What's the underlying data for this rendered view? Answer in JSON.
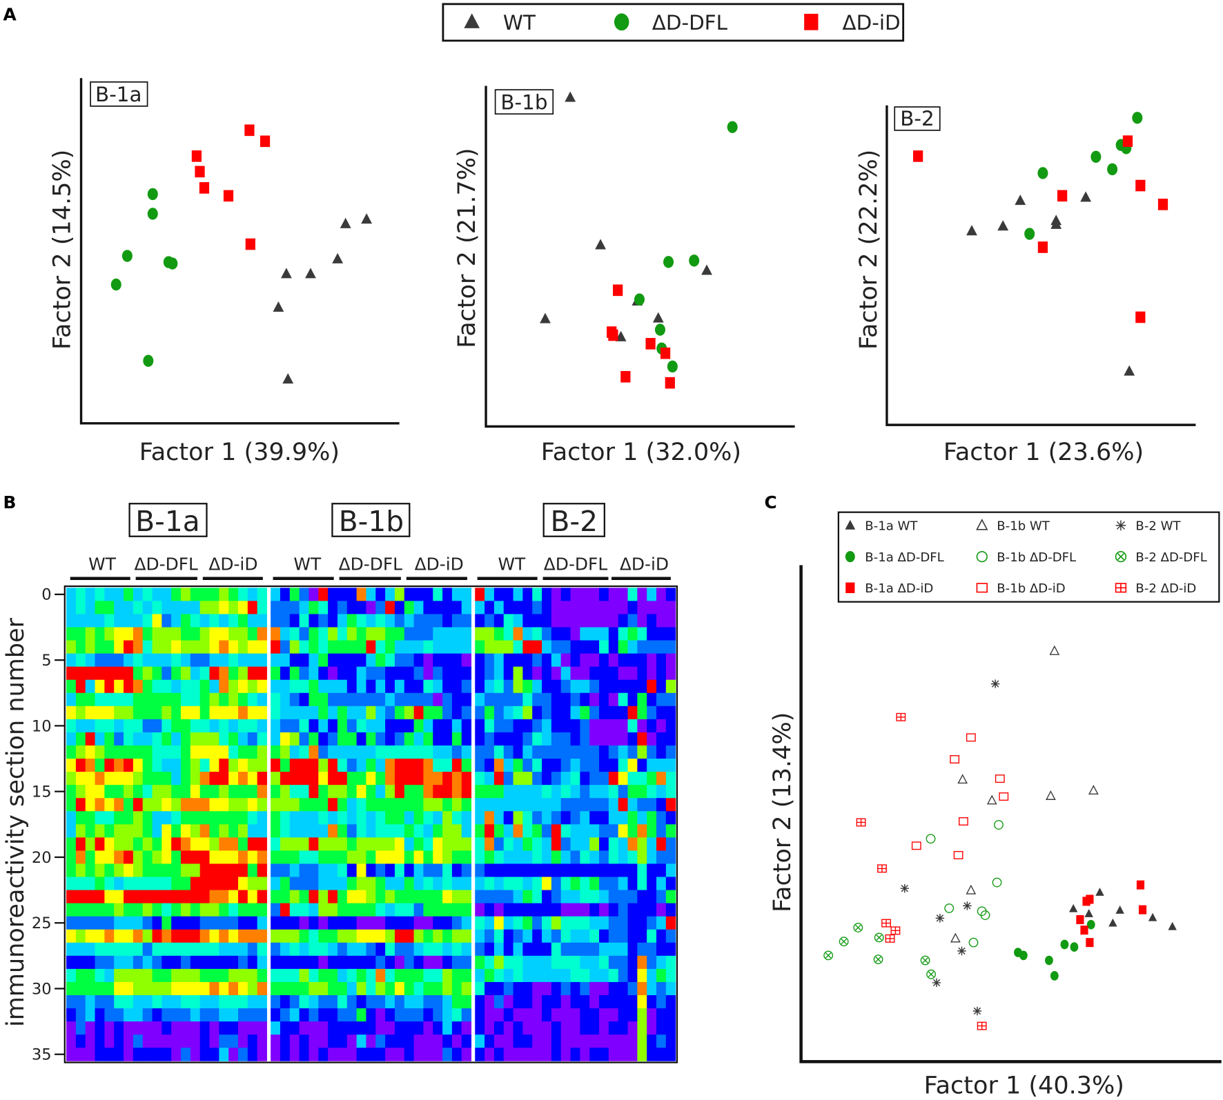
{
  "panel_labels": {
    "a": "A",
    "b": "B",
    "c": "C"
  },
  "legend_a": [
    {
      "label": "WT",
      "marker": "triangle",
      "color": "#3a3a3a"
    },
    {
      "label": "ΔD-DFL",
      "marker": "circle",
      "color": "#129a12"
    },
    {
      "label": "ΔD-iD",
      "marker": "square",
      "color": "#ff0000"
    }
  ],
  "legend_c": [
    {
      "label": "B-1a WT",
      "marker": "triangle",
      "color": "#3a3a3a"
    },
    {
      "label": "B-1b WT",
      "marker": "triangle-open",
      "color": "#3a3a3a"
    },
    {
      "label": "B-2   WT",
      "marker": "asterisk",
      "color": "#3a3a3a"
    },
    {
      "label": "B-1a ΔD-DFL",
      "marker": "circle",
      "color": "#129a12"
    },
    {
      "label": "B-1b ΔD-DFL",
      "marker": "circle-open",
      "color": "#129a12"
    },
    {
      "label": "B-2   ΔD-DFL",
      "marker": "circle-x",
      "color": "#129a12"
    },
    {
      "label": "B-1a ΔD-iD",
      "marker": "square",
      "color": "#ff0000"
    },
    {
      "label": "B-1b ΔD-iD",
      "marker": "square-open",
      "color": "#ff0000"
    },
    {
      "label": "B-2   ΔD-iD",
      "marker": "square-plus",
      "color": "#ff0000"
    }
  ],
  "chart_data": [
    {
      "type": "scatter",
      "panel": "A",
      "title": "B-1a",
      "xlabel": "Factor 1 (39.9%)",
      "ylabel": "Factor 2 (14.5%)",
      "xlim": [
        0,
        100
      ],
      "ylim": [
        0,
        100
      ],
      "grid": false,
      "series": [
        {
          "name": "WT",
          "marker": "triangle",
          "color": "#3a3a3a",
          "points": [
            [
              89.7,
              59.1
            ],
            [
              83.1,
              57.8
            ],
            [
              80.6,
              47.6
            ],
            [
              64.5,
              43.3
            ],
            [
              72.1,
              43.3
            ],
            [
              62.0,
              33.6
            ],
            [
              65.0,
              12.8
            ]
          ]
        },
        {
          "name": "ΔD-DFL",
          "marker": "circle",
          "color": "#129a12",
          "points": [
            [
              22.5,
              66.4
            ],
            [
              22.5,
              60.7
            ],
            [
              14.5,
              48.5
            ],
            [
              27.5,
              46.7
            ],
            [
              28.7,
              46.3
            ],
            [
              11.0,
              40.2
            ],
            [
              21.1,
              18.1
            ]
          ]
        },
        {
          "name": "ΔD-iD",
          "marker": "square",
          "color": "#ff0000",
          "points": [
            [
              52.9,
              84.9
            ],
            [
              57.8,
              81.7
            ],
            [
              36.3,
              77.4
            ],
            [
              37.3,
              72.9
            ],
            [
              38.7,
              68.2
            ],
            [
              46.3,
              65.9
            ],
            [
              53.2,
              51.9
            ]
          ]
        }
      ]
    },
    {
      "type": "scatter",
      "panel": "A",
      "title": "B-1b",
      "xlabel": "Factor 1 (32.0%)",
      "ylabel": "Factor 2 (21.7%)",
      "xlim": [
        0,
        100
      ],
      "ylim": [
        0,
        100
      ],
      "grid": false,
      "series": [
        {
          "name": "WT",
          "marker": "triangle",
          "color": "#3a3a3a",
          "points": [
            [
              27.3,
              96.6
            ],
            [
              37.1,
              53.3
            ],
            [
              71.5,
              45.8
            ],
            [
              19.2,
              31.6
            ],
            [
              55.8,
              31.8
            ],
            [
              49.0,
              36.8
            ],
            [
              43.7,
              26.3
            ]
          ]
        },
        {
          "name": "ΔD-DFL",
          "marker": "circle",
          "color": "#129a12",
          "points": [
            [
              79.8,
              87.9
            ],
            [
              67.4,
              48.7
            ],
            [
              59.1,
              48.3
            ],
            [
              49.7,
              37.3
            ],
            [
              56.4,
              28.4
            ],
            [
              56.9,
              22.9
            ],
            [
              60.4,
              17.6
            ]
          ]
        },
        {
          "name": "ΔD-iD",
          "marker": "square",
          "color": "#ff0000",
          "points": [
            [
              42.7,
              40.0
            ],
            [
              40.7,
              27.7
            ],
            [
              41.2,
              26.8
            ],
            [
              53.3,
              24.3
            ],
            [
              58.1,
              21.5
            ],
            [
              45.2,
              14.6
            ],
            [
              59.6,
              12.8
            ]
          ]
        }
      ]
    },
    {
      "type": "scatter",
      "panel": "A",
      "title": "B-2",
      "xlabel": "Factor 1 (23.6%)",
      "ylabel": "Factor 2 (22.2%)",
      "xlim": [
        0,
        100
      ],
      "ylim": [
        0,
        100
      ],
      "grid": false,
      "series": [
        {
          "name": "WT",
          "marker": "triangle",
          "color": "#3a3a3a",
          "points": [
            [
              27.5,
              60.7
            ],
            [
              37.6,
              62.2
            ],
            [
              43.2,
              70.2
            ],
            [
              54.8,
              63.9
            ],
            [
              54.8,
              62.7
            ],
            [
              64.4,
              71.2
            ],
            [
              78.5,
              16.8
            ]
          ]
        },
        {
          "name": "ΔD-DFL",
          "marker": "circle",
          "color": "#129a12",
          "points": [
            [
              81.1,
              96.1
            ],
            [
              75.8,
              87.6
            ],
            [
              77.5,
              86.6
            ],
            [
              67.7,
              83.9
            ],
            [
              73.0,
              80.0
            ],
            [
              50.5,
              78.8
            ],
            [
              46.2,
              59.8
            ]
          ]
        },
        {
          "name": "ΔD-iD",
          "marker": "square",
          "color": "#ff0000",
          "points": [
            [
              10.1,
              84.1
            ],
            [
              78.0,
              88.8
            ],
            [
              82.1,
              74.9
            ],
            [
              89.4,
              69.0
            ],
            [
              56.8,
              71.7
            ],
            [
              50.5,
              55.6
            ],
            [
              82.1,
              33.7
            ]
          ]
        }
      ]
    },
    {
      "type": "heatmap",
      "panel": "B",
      "ylabel": "immunoreactivity section number",
      "yticks": [
        "0",
        "5",
        "10",
        "15",
        "20",
        "25",
        "30",
        "35"
      ],
      "ytick_values": [
        0,
        5,
        10,
        15,
        20,
        25,
        30,
        35
      ],
      "rows": 36,
      "colorscale": [
        "#7f00ff",
        "#0000ff",
        "#0070ff",
        "#00d0ff",
        "#00ffd0",
        "#00ff40",
        "#90ff00",
        "#ffff00",
        "#ff8000",
        "#ff0000"
      ],
      "blocks": [
        {
          "title": "B-1a",
          "groups": [
            "WT",
            "ΔD-DFL",
            "ΔD-iD"
          ],
          "matrix": [
            "343433534335655565434",
            "343553343433336676794",
            "333343334723543434533",
            "556567785666556776658",
            "656557984667666787677",
            "343222343334322334333",
            "999999956525634985699",
            "593797985443445386767",
            "355444455555445656543",
            "767776655565775777877",
            "433443442245544343443",
            "359352433453566645324",
            "567655555444577774556",
            "798598975433564796766",
            "677877765553568997879",
            "567755654665575565558",
            "597878596676888776676",
            "355445565334555555543",
            "365656665375768565633",
            "596976656579877688599",
            "585778965675999777878",
            "565656765555669999959",
            "444543444445599999766",
            "999977999999999887979",
            "555556556545656654555",
            "222223332151112222113",
            "767787786989998787888",
            "333444442444444433324",
            "111223323211211111213",
            "455436666556665556665",
            "555557766667777878768",
            "223224433433443344433",
            "123122332122232233222",
            "020101000010001011000",
            "010101020000001022010",
            "000111011110201130210"
          ]
        },
        {
          "title": "B-1b",
          "groups": [
            "WT",
            "ΔD-DFL",
            "ΔD-iD"
          ],
          "matrix": [
            "315209111831361114133",
            "222354121102915311113",
            "221412135434323222122",
            "834254646566552223333",
            "926454555594533343333",
            "331135111135422101110",
            "515231011322111202111",
            "334453331313131143112",
            "432155222222322220211",
            "433335353363256955212",
            "322413152433111531131",
            "376251255152125351151",
            "563482333334444443323",
            "959996942353899984495",
            "699997995575899988989",
            "564495665753695589989",
            "666555953455555566565",
            "543334343434553543643",
            "543333852434445435663",
            "466696665666673547666",
            "555445556657775757655",
            "223223341712141322412",
            "352223335665335343433",
            "556596957765655555766",
            "294436655554344255555",
            "111010111000111001123",
            "666545566777699656566",
            "234344323321422344343",
            "111110111112102100122",
            "444645534548455544655",
            "555566553646575455656",
            "212432242122323322355",
            "123121122510122212342",
            "311000111110011101310",
            "010100110302111000101",
            "010101000111001000210"
          ]
        },
        {
          "title": "B-2",
          "groups": [
            "WT",
            "ΔD-DFL",
            "ΔD-iD"
          ],
          "matrix": [
            "931131410100010040301",
            "313111210000000010000",
            "121431110000000120100",
            "665483421103331454111",
            "566649932211141532222",
            "123111213010010111010",
            "123161010300111001010",
            "134265311233211111916",
            "322224221121010415122",
            "252346121135211195211",
            "142211231112000040101",
            "121112432212000019011",
            "224213222222212326212",
            "218352411232211471333",
            "439266212341229744584",
            "555333343432334255434",
            "333333333222223932219",
            "383164232123113353521",
            "595384529433322758525",
            "482435439233614386392",
            "454333435324324346322",
            "211111111111111114113",
            "343443472454522314131",
            "222235412334432221125",
            "010111111000101211101",
            "437345246444332211239",
            "324123132433412211412",
            "213131114222233312211",
            "546443334443342218234",
            "354343333344334217354",
            "411211001212001128323",
            "102011011011011117121",
            "100100010001100116011",
            "101010001001101106011",
            "310011001000000006121",
            "101000001010110006111"
          ]
        }
      ]
    },
    {
      "type": "scatter",
      "panel": "C",
      "xlabel": "Factor 1 (40.3%)",
      "ylabel": "Factor 2 (13.4%)",
      "xlim": [
        0,
        100
      ],
      "ylim": [
        0,
        100
      ],
      "grid": false,
      "legend": "top",
      "series": [
        {
          "name": "B-1a WT",
          "marker": "triangle",
          "color": "#3a3a3a",
          "points": [
            [
              64.9,
              30.8
            ],
            [
              68.6,
              29.8
            ],
            [
              71.2,
              34.1
            ],
            [
              74.3,
              27.9
            ],
            [
              76.0,
              30.5
            ],
            [
              83.8,
              29.0
            ],
            [
              88.5,
              27.2
            ]
          ]
        },
        {
          "name": "B-1a ΔD-DFL",
          "marker": "circle",
          "color": "#129a12",
          "points": [
            [
              51.7,
              22.0
            ],
            [
              53.0,
              21.4
            ],
            [
              59.1,
              20.4
            ],
            [
              60.4,
              17.3
            ],
            [
              62.8,
              23.6
            ],
            [
              65.1,
              23.1
            ],
            [
              69.1,
              27.6
            ]
          ]
        },
        {
          "name": "B-1a ΔD-iD",
          "marker": "square",
          "color": "#ff0000",
          "points": [
            [
              68.0,
              32.3
            ],
            [
              68.8,
              32.7
            ],
            [
              66.5,
              28.6
            ],
            [
              67.5,
              26.5
            ],
            [
              68.8,
              24.0
            ],
            [
              80.9,
              35.6
            ],
            [
              81.4,
              30.6
            ]
          ]
        },
        {
          "name": "B-1b WT",
          "marker": "triangle-open",
          "color": "#3a3a3a",
          "points": [
            [
              60.4,
              82.7
            ],
            [
              38.5,
              56.8
            ],
            [
              45.5,
              52.6
            ],
            [
              59.5,
              53.5
            ],
            [
              69.7,
              54.6
            ],
            [
              40.5,
              34.5
            ],
            [
              36.8,
              24.8
            ]
          ]
        },
        {
          "name": "B-1b ΔD-DFL",
          "marker": "circle-open",
          "color": "#129a12",
          "points": [
            [
              30.9,
              44.9
            ],
            [
              47.1,
              47.7
            ],
            [
              46.7,
              36.1
            ],
            [
              35.3,
              30.9
            ],
            [
              43.1,
              30.3
            ],
            [
              43.9,
              29.5
            ],
            [
              41.1,
              24.0
            ]
          ]
        },
        {
          "name": "B-1b ΔD-iD",
          "marker": "square-open",
          "color": "#ff0000",
          "points": [
            [
              40.5,
              65.3
            ],
            [
              36.6,
              60.9
            ],
            [
              47.4,
              57.0
            ],
            [
              48.3,
              53.4
            ],
            [
              38.7,
              48.4
            ],
            [
              27.5,
              43.5
            ],
            [
              37.5,
              41.6
            ]
          ]
        },
        {
          "name": "B-2 WT",
          "marker": "asterisk",
          "color": "#3a3a3a",
          "points": [
            [
              46.3,
              76.1
            ],
            [
              24.7,
              34.9
            ],
            [
              39.6,
              31.4
            ],
            [
              33.1,
              28.9
            ],
            [
              38.3,
              22.3
            ],
            [
              32.3,
              15.9
            ],
            [
              42.0,
              10.2
            ]
          ]
        },
        {
          "name": "B-2 ΔD-DFL",
          "marker": "circle-x",
          "color": "#129a12",
          "points": [
            [
              13.6,
              27.0
            ],
            [
              10.2,
              24.2
            ],
            [
              6.5,
              21.4
            ],
            [
              18.6,
              25.0
            ],
            [
              18.4,
              20.6
            ],
            [
              29.6,
              20.4
            ],
            [
              31.0,
              17.6
            ]
          ]
        },
        {
          "name": "B-2 ΔD-iD",
          "marker": "square-plus",
          "color": "#ff0000",
          "points": [
            [
              23.8,
              69.4
            ],
            [
              14.3,
              48.2
            ],
            [
              19.3,
              38.9
            ],
            [
              20.3,
              27.9
            ],
            [
              22.5,
              26.4
            ],
            [
              21.2,
              24.8
            ],
            [
              43.1,
              7.2
            ]
          ]
        }
      ]
    }
  ]
}
